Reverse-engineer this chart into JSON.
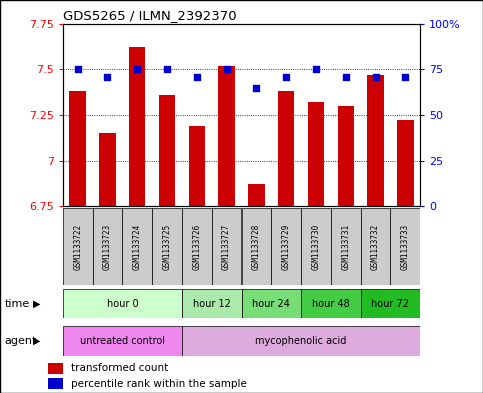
{
  "title": "GDS5265 / ILMN_2392370",
  "samples": [
    "GSM1133722",
    "GSM1133723",
    "GSM1133724",
    "GSM1133725",
    "GSM1133726",
    "GSM1133727",
    "GSM1133728",
    "GSM1133729",
    "GSM1133730",
    "GSM1133731",
    "GSM1133732",
    "GSM1133733"
  ],
  "transformed_count": [
    7.38,
    7.15,
    7.62,
    7.36,
    7.19,
    7.52,
    6.87,
    7.38,
    7.32,
    7.3,
    7.47,
    7.22
  ],
  "percentile_rank": [
    75,
    71,
    75,
    75,
    71,
    75,
    65,
    71,
    75,
    71,
    71,
    71
  ],
  "ylim_left": [
    6.75,
    7.75
  ],
  "ylim_right": [
    0,
    100
  ],
  "yticks_left": [
    6.75,
    7.0,
    7.25,
    7.5,
    7.75
  ],
  "yticks_right": [
    0,
    25,
    50,
    75,
    100
  ],
  "ytick_labels_left": [
    "6.75",
    "7",
    "7.25",
    "7.5",
    "7.75"
  ],
  "ytick_labels_right": [
    "0",
    "25",
    "50",
    "75",
    "100%"
  ],
  "bar_color": "#cc0000",
  "dot_color": "#0000cc",
  "grid_color": "#000000",
  "bar_bottom": 6.75,
  "time_groups": [
    {
      "label": "hour 0",
      "start": 0,
      "end": 4,
      "color": "#ccffcc"
    },
    {
      "label": "hour 12",
      "start": 4,
      "end": 6,
      "color": "#aaeaaa"
    },
    {
      "label": "hour 24",
      "start": 6,
      "end": 8,
      "color": "#77dd77"
    },
    {
      "label": "hour 48",
      "start": 8,
      "end": 10,
      "color": "#44cc44"
    },
    {
      "label": "hour 72",
      "start": 10,
      "end": 12,
      "color": "#22bb22"
    }
  ],
  "agent_groups": [
    {
      "label": "untreated control",
      "start": 0,
      "end": 4,
      "color": "#ee88ee"
    },
    {
      "label": "mycophenolic acid",
      "start": 4,
      "end": 12,
      "color": "#ddaadd"
    }
  ],
  "legend_bar_label": "transformed count",
  "legend_dot_label": "percentile rank within the sample",
  "time_label": "time",
  "agent_label": "agent",
  "bg_color": "#ffffff",
  "sample_bg": "#cccccc",
  "spine_color": "#000000"
}
